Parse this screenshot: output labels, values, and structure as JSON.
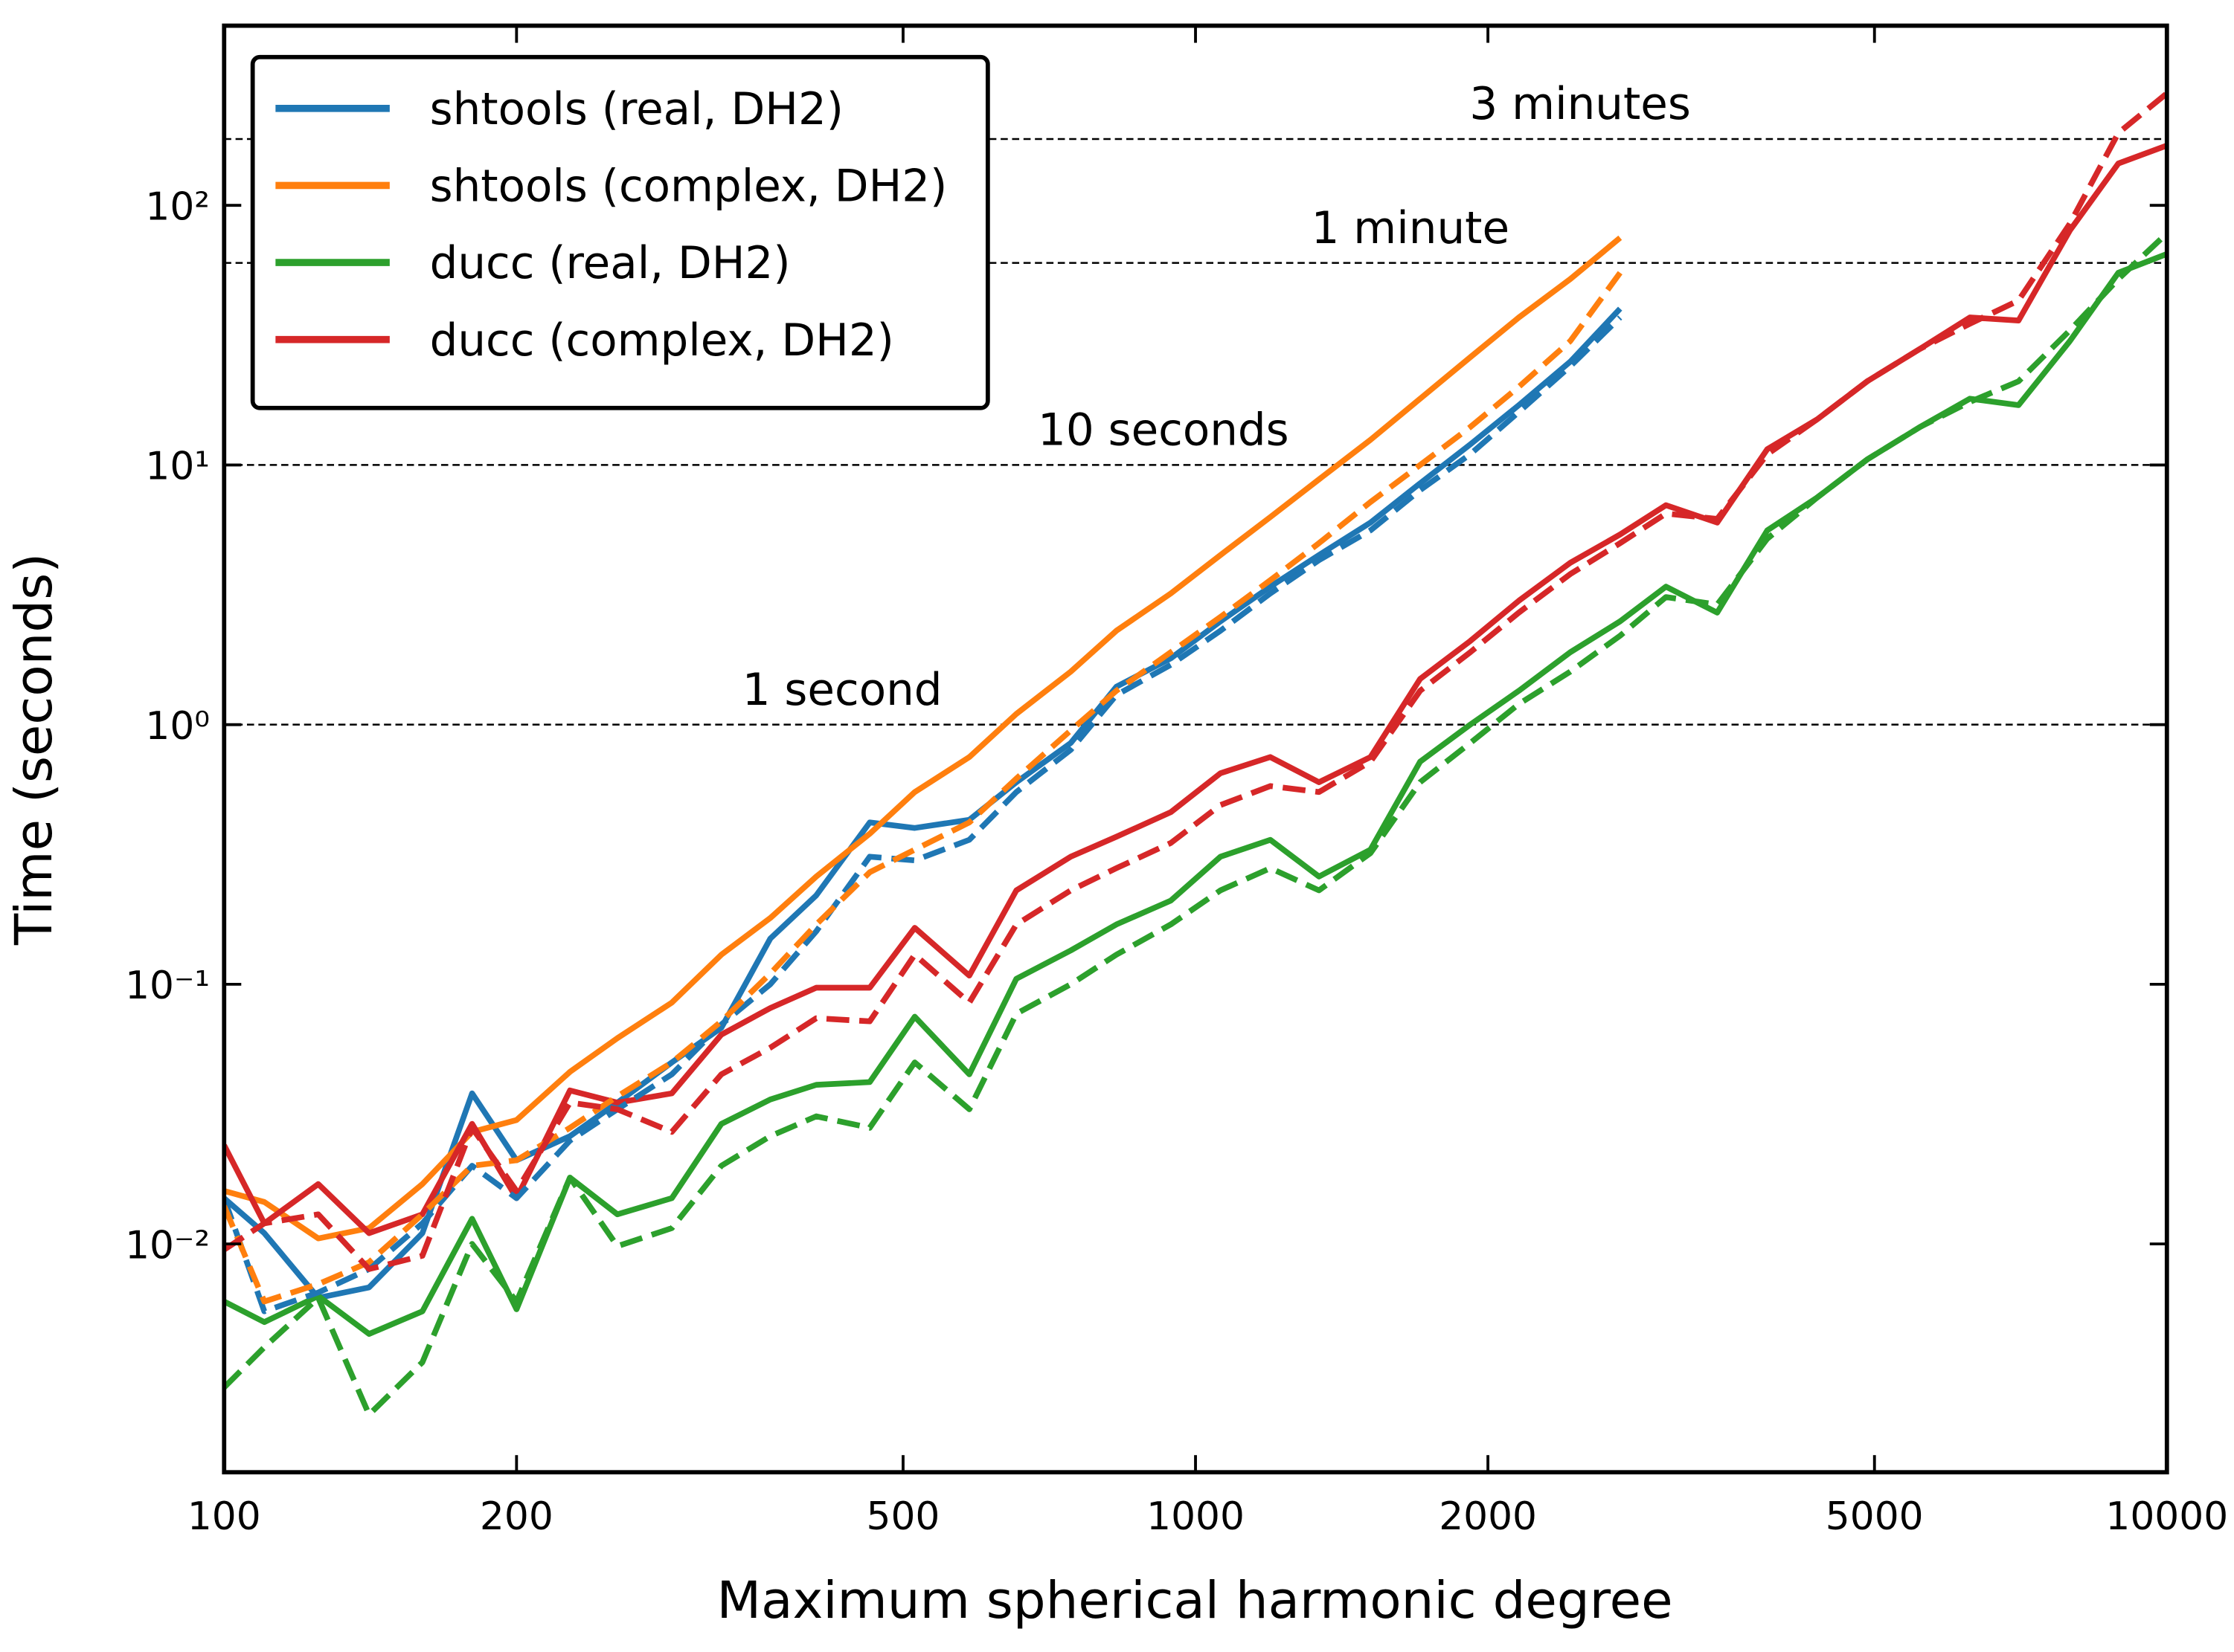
{
  "chart_data": {
    "type": "line",
    "xlabel": "Maximum spherical harmonic degree",
    "ylabel": "Time (seconds)",
    "xscale": "log",
    "yscale": "log",
    "xlim": [
      100,
      10000
    ],
    "ylim": [
      0.00132,
      492
    ],
    "xticks": [
      100,
      200,
      500,
      1000,
      2000,
      5000,
      10000
    ],
    "yticks": [
      {
        "value": 0.01,
        "label": "10⁻²"
      },
      {
        "value": 0.1,
        "label": "10⁻¹"
      },
      {
        "value": 1,
        "label": "10⁰"
      },
      {
        "value": 10,
        "label": "10¹"
      },
      {
        "value": 100,
        "label": "10²"
      }
    ],
    "legend": "upper left",
    "hlines": [
      {
        "value": 180,
        "label": "3 minutes"
      },
      {
        "value": 60,
        "label": "1 minute"
      },
      {
        "value": 10,
        "label": "10 seconds"
      },
      {
        "value": 1,
        "label": "1 second"
      }
    ],
    "x": [
      100,
      110,
      125,
      141,
      160,
      180,
      200,
      227,
      254,
      289,
      325,
      365,
      407,
      462,
      514,
      585,
      654,
      744,
      829,
      943,
      1061,
      1194,
      1340,
      1514,
      1703,
      1918,
      2152,
      2431,
      2736,
      3050,
      3444,
      3878,
      4366,
      4914,
      5569,
      6269,
      7035,
      7945,
      8913,
      10000
    ],
    "series": [
      {
        "name": "shtools (real, DH2)",
        "color": "#1f77b4",
        "dashed": false,
        "values": [
          0.015,
          0.011,
          0.0062,
          0.0068,
          0.011,
          0.038,
          0.021,
          0.026,
          0.035,
          0.05,
          0.068,
          0.15,
          0.22,
          0.42,
          0.4,
          0.43,
          0.6,
          0.85,
          1.4,
          1.8,
          2.5,
          3.4,
          4.5,
          6,
          8.5,
          12,
          17,
          25,
          40,
          null,
          null,
          null,
          null,
          null,
          null,
          null,
          null,
          null,
          null,
          null
        ]
      },
      {
        "name": "shtools (complex, DH2)",
        "color": "#ff7f0e",
        "dashed": false,
        "values": [
          0.016,
          0.0145,
          0.0105,
          0.0115,
          0.017,
          0.027,
          0.03,
          0.046,
          0.062,
          0.085,
          0.13,
          0.18,
          0.26,
          0.38,
          0.55,
          0.75,
          1.1,
          1.6,
          2.3,
          3.2,
          4.5,
          6.3,
          8.8,
          12.5,
          18,
          26,
          37,
          52,
          75,
          null,
          null,
          null,
          null,
          null,
          null,
          null,
          null,
          null,
          null,
          null
        ]
      },
      {
        "name": "ducc (real, DH2)",
        "color": "#2ca02c",
        "dashed": false,
        "values": [
          0.006,
          0.005,
          0.0063,
          0.0045,
          0.0055,
          0.0125,
          0.0056,
          0.018,
          0.013,
          0.015,
          0.029,
          0.036,
          0.041,
          0.042,
          0.075,
          0.045,
          0.105,
          0.135,
          0.17,
          0.21,
          0.31,
          0.36,
          0.26,
          0.33,
          0.72,
          1,
          1.35,
          1.9,
          2.5,
          3.4,
          2.7,
          5.6,
          7.5,
          10.5,
          14,
          18,
          17,
          30,
          55,
          65
        ]
      },
      {
        "name": "ducc (complex, DH2)",
        "color": "#d62728",
        "dashed": false,
        "values": [
          0.024,
          0.012,
          0.017,
          0.011,
          0.013,
          0.029,
          0.015,
          0.039,
          0.035,
          0.038,
          0.064,
          0.081,
          0.097,
          0.097,
          0.165,
          0.108,
          0.23,
          0.31,
          0.37,
          0.46,
          0.65,
          0.75,
          0.6,
          0.75,
          1.5,
          2.1,
          3,
          4.2,
          5.4,
          7,
          6,
          11.5,
          15,
          21,
          28,
          37,
          36,
          80,
          145,
          170
        ]
      },
      {
        "color": "#1f77b4",
        "dashed": true,
        "values": [
          0.015,
          0.0055,
          0.0065,
          0.008,
          0.012,
          0.02,
          0.015,
          0.025,
          0.033,
          0.045,
          0.07,
          0.1,
          0.16,
          0.31,
          0.3,
          0.36,
          0.55,
          0.8,
          1.3,
          1.7,
          2.3,
          3.2,
          4.3,
          5.6,
          8,
          11,
          16,
          24,
          37,
          null,
          null,
          null,
          null,
          null,
          null,
          null,
          null,
          null,
          null,
          null
        ]
      },
      {
        "color": "#ff7f0e",
        "dashed": true,
        "values": [
          0.014,
          0.006,
          0.007,
          0.0085,
          0.013,
          0.02,
          0.021,
          0.028,
          0.037,
          0.05,
          0.072,
          0.11,
          0.17,
          0.27,
          0.33,
          0.42,
          0.62,
          0.95,
          1.35,
          1.9,
          2.6,
          3.6,
          5,
          7.2,
          10,
          14,
          20,
          30,
          55,
          null,
          null,
          null,
          null,
          null,
          null,
          null,
          null,
          null,
          null,
          null
        ]
      },
      {
        "color": "#2ca02c",
        "dashed": true,
        "values": [
          0.0028,
          0.004,
          0.0062,
          0.0022,
          0.0035,
          0.01,
          0.006,
          0.018,
          0.0098,
          0.0115,
          0.02,
          0.026,
          0.031,
          0.028,
          0.05,
          0.033,
          0.077,
          0.1,
          0.13,
          0.17,
          0.23,
          0.28,
          0.23,
          0.32,
          0.6,
          0.85,
          1.2,
          1.6,
          2.2,
          3.1,
          2.9,
          5.2,
          7.5,
          10.5,
          14,
          17.5,
          21,
          33,
          52,
          78
        ]
      },
      {
        "color": "#d62728",
        "dashed": true,
        "values": [
          0.0095,
          0.012,
          0.013,
          0.008,
          0.009,
          0.028,
          0.016,
          0.035,
          0.033,
          0.027,
          0.045,
          0.057,
          0.074,
          0.072,
          0.13,
          0.085,
          0.17,
          0.23,
          0.28,
          0.35,
          0.49,
          0.58,
          0.55,
          0.72,
          1.35,
          1.9,
          2.7,
          3.8,
          5,
          6.5,
          6.2,
          11,
          15,
          21,
          28,
          35,
          43,
          85,
          190,
          270
        ]
      }
    ]
  }
}
